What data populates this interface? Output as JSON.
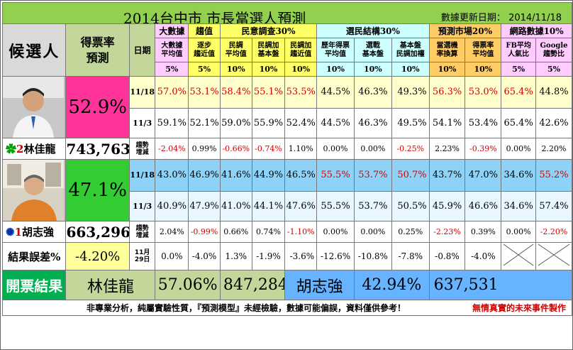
{
  "title": "2014台中市 市長當選人預測",
  "update_label": "數據更新日期：",
  "update_date": "2014/11/18",
  "header": {
    "candidate": "候選人",
    "rate_l1": "得票率",
    "rate_l2": "預測",
    "date": "日期",
    "groups": [
      "大數據",
      "趨值",
      "民意調查30%",
      "選民結構30%",
      "預測市場20%",
      "網路數據10%"
    ],
    "subs": [
      [
        "大數據",
        "平均值"
      ],
      [
        "逐步",
        "趨近值"
      ],
      [
        "民調",
        "平均值"
      ],
      [
        "民調加",
        "基本盤"
      ],
      [
        "民調加",
        "趨近值"
      ],
      [
        "歷年得票",
        "平均值"
      ],
      [
        "選戰",
        "基本盤"
      ],
      [
        "基本盤",
        "民調加權"
      ],
      [
        "當選機",
        "率換算"
      ],
      [
        "得票率",
        "平均值"
      ],
      [
        "FB平均",
        "人氣比"
      ],
      [
        "Google",
        "趨勢比"
      ]
    ],
    "weights": [
      "5%",
      "5%",
      "10%",
      "10%",
      "10%",
      "10%",
      "10%",
      "10%",
      "10%",
      "10%",
      "5%",
      "5%"
    ]
  },
  "lin": {
    "name": "林佳龍",
    "number": "2",
    "rate": "52.9%",
    "votes": "743,763",
    "date1": "11/18",
    "date2": "11/3",
    "trend_l1": "趨勢",
    "trend_l2": "增減",
    "row1": [
      "57.0%",
      "53.1%",
      "58.4%",
      "55.1%",
      "53.5%",
      "44.5%",
      "46.3%",
      "49.3%",
      "56.3%",
      "53.0%",
      "65.4%",
      "44.8%"
    ],
    "row2": [
      "59.1%",
      "52.1%",
      "59.0%",
      "55.9%",
      "52.4%",
      "44.5%",
      "46.3%",
      "49.5%",
      "54.1%",
      "53.4%",
      "65.4%",
      "42.6%"
    ],
    "row3": [
      "-2.04%",
      "0.99%",
      "-0.66%",
      "-0.74%",
      "1.10%",
      "0.00%",
      "0.00%",
      "-0.25%",
      "2.23%",
      "-0.39%",
      "0.00%",
      "2.20%"
    ]
  },
  "hu": {
    "name": "胡志強",
    "number": "1",
    "rate": "47.1%",
    "votes": "663,296",
    "date1": "11/18",
    "date2": "11/3",
    "trend_l1": "趨勢",
    "trend_l2": "增減",
    "row1": [
      "43.0%",
      "46.9%",
      "41.6%",
      "44.9%",
      "46.5%",
      "55.5%",
      "53.7%",
      "50.7%",
      "43.7%",
      "47.0%",
      "34.6%",
      "55.2%"
    ],
    "row2": [
      "40.9%",
      "47.9%",
      "41.0%",
      "44.1%",
      "47.6%",
      "55.5%",
      "53.7%",
      "50.5%",
      "45.9%",
      "46.6%",
      "34.6%",
      "57.4%"
    ],
    "row3": [
      "2.04%",
      "-0.99%",
      "0.66%",
      "0.74%",
      "-1.10%",
      "0.00%",
      "0.00%",
      "0.25%",
      "-2.23%",
      "0.39%",
      "0.00%",
      "-2.20%"
    ]
  },
  "error": {
    "label": "結果誤差%",
    "value": "-4.20%",
    "date_l1": "11月",
    "date_l2": "29日",
    "values": [
      "0.0%",
      "-4.0%",
      "1.3%",
      "-1.9%",
      "-3.6%",
      "-12.6%",
      "-10.8%",
      "-7.8%",
      "-0.8%",
      "-4.0%",
      "",
      ""
    ]
  },
  "result": {
    "label": "開票結果",
    "lin_name": "林佳龍",
    "lin_pct": "57.06%",
    "lin_votes": "847,284",
    "hu_name": "胡志強",
    "hu_pct": "42.94%",
    "hu_votes": "637,531"
  },
  "footer": {
    "disclaimer": "非專業分析，純屬實驗性質，『預測模型』未經檢驗，數據可能偏誤，資料僅供參考！",
    "maker": "無情真實的未來事件製作"
  },
  "colors": {
    "title_bg": "#92d050",
    "lin_rate_bg": "#ff3399",
    "hu_rate_bg": "#33cc33",
    "hu_row_bg": "#8ed3f7",
    "red_text": "#d00000"
  }
}
